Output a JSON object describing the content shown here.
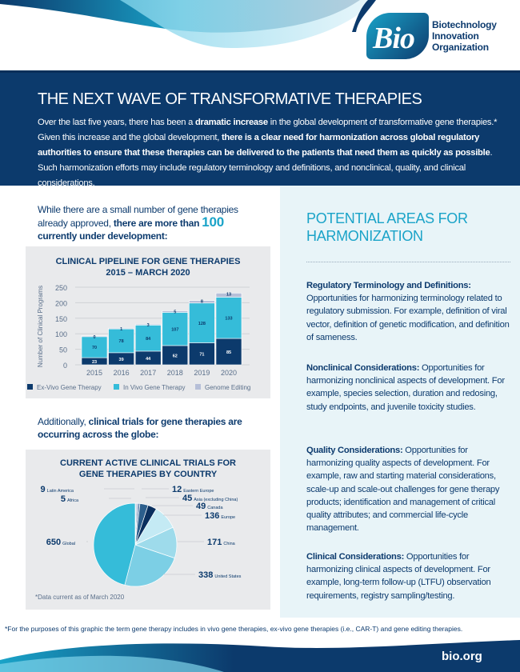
{
  "logo": {
    "mark": "Bio",
    "name_lines": [
      "Biotechnology",
      "Innovation",
      "Organization"
    ]
  },
  "header": {
    "title": "THE NEXT WAVE OF TRANSFORMATIVE THERAPIES",
    "paragraph": [
      {
        "text": "Over the last five years, there has been a ",
        "bold": false
      },
      {
        "text": "dramatic increase",
        "bold": true
      },
      {
        "text": " in the global development of transformative gene therapies.* Given this increase and the global development, ",
        "bold": false
      },
      {
        "text": "there is a clear need for harmonization across global regulatory authorities to ensure that these therapies can be delivered to the patients that need them as quickly as possible",
        "bold": true
      },
      {
        "text": ". Such harmonization efforts may include regulatory terminology and definitions, and nonclinical, quality, and clinical considerations.",
        "bold": false
      }
    ]
  },
  "left": {
    "intro1": [
      {
        "text": "While there are a small number of gene therapies already approved, ",
        "bold": false
      },
      {
        "text": "there are more than ",
        "bold": true
      },
      {
        "text": "100",
        "bold": true,
        "big": true
      },
      {
        "text": " currently under development:",
        "bold": true
      }
    ],
    "intro2": [
      {
        "text": "Additionally, ",
        "bold": false
      },
      {
        "text": "clinical trials for gene therapies are occurring across the globe:",
        "bold": true
      }
    ]
  },
  "chart_data": [
    {
      "type": "bar",
      "stacked": true,
      "title": "CLINICAL PIPELINE FOR GENE THERAPIES",
      "subtitle": "2015 – MARCH 2020",
      "xlabel": "",
      "ylabel": "Number of Clinical Programs",
      "ylim": [
        0,
        250
      ],
      "yticks": [
        0,
        50,
        100,
        150,
        200,
        250
      ],
      "grid": true,
      "legend": "bottom",
      "categories": [
        "2015",
        "2016",
        "2017",
        "2018",
        "2019",
        "2020"
      ],
      "series": [
        {
          "name": "Ex-Vivo Gene Therapy",
          "color": "#0c3a6c",
          "values": [
            23,
            39,
            44,
            62,
            71,
            85
          ]
        },
        {
          "name": "In Vivo Gene Therapy",
          "color": "#35bcd9",
          "values": [
            70,
            78,
            84,
            107,
            128,
            133
          ]
        },
        {
          "name": "Genome Editing",
          "color": "#b6bfd8",
          "values": [
            0,
            1,
            3,
            5,
            8,
            13
          ]
        }
      ]
    },
    {
      "type": "pie",
      "title": "CURRENT ACTIVE CLINICAL TRIALS FOR",
      "subtitle": "GENE THERAPIES BY COUNTRY",
      "note": "*Data current as of March 2020",
      "slices": [
        {
          "label": "Africa",
          "value": 5,
          "color": "#8a98be"
        },
        {
          "label": "Latin America",
          "value": 9,
          "color": "#aab6d2"
        },
        {
          "label": "Eastern Europe",
          "value": 12,
          "color": "#6f8fb6"
        },
        {
          "label": "Asia (excluding China)",
          "value": 45,
          "color": "#2c5e8c"
        },
        {
          "label": "Canada",
          "value": 49,
          "color": "#0a2f5e"
        },
        {
          "label": "Europe",
          "value": 136,
          "color": "#c4eaf4"
        },
        {
          "label": "China",
          "value": 171,
          "color": "#9edbeb"
        },
        {
          "label": "United States",
          "value": 338,
          "color": "#7ccfe5"
        },
        {
          "label": "Global",
          "value": 650,
          "color": "#35bcd9"
        }
      ]
    }
  ],
  "right": {
    "title": "POTENTIAL AREAS FOR HARMONIZATION",
    "sections": [
      {
        "heading": "Regulatory Terminology and Definitions:",
        "body": " Opportunities for harmonizing terminology related to regulatory submission. For example, definition of viral vector, definition of genetic modification, and definition of sameness."
      },
      {
        "heading": "Nonclinical Considerations:",
        "body": " Opportunities for harmonizing nonclinical aspects of development. For example, species selection, duration and redosing, study endpoints, and juvenile toxicity studies."
      },
      {
        "heading": "Quality Considerations:",
        "body": " Opportunities for harmonizing quality aspects of development. For example, raw and starting material considerations, scale-up and scale-out challenges for gene therapy products; identification and management of critical quality attributes; and commercial life-cycle management."
      },
      {
        "heading": "Clinical Considerations:",
        "body": " Opportunities for harmonizing clinical aspects of development. For example, long-term follow-up (LTFU) observation requirements, registry sampling/testing."
      }
    ]
  },
  "footnote": "*For the purposes of this graphic the term gene therapy includes in vivo gene therapies, ex-vivo gene therapies (i.e., CAR-T) and gene editing therapies.",
  "footer": {
    "url": "bio.org"
  }
}
